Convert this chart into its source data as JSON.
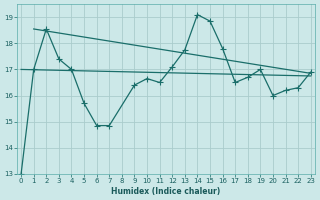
{
  "xlabel": "Humidex (Indice chaleur)",
  "bg_color": "#cce8e8",
  "grid_color": "#aacccc",
  "line_color": "#1a6e6a",
  "xlim": [
    0,
    23
  ],
  "ylim": [
    13,
    19.5
  ],
  "yticks": [
    13,
    14,
    15,
    16,
    17,
    18,
    19
  ],
  "xticks": [
    0,
    1,
    2,
    3,
    4,
    5,
    6,
    7,
    8,
    9,
    10,
    11,
    12,
    13,
    14,
    15,
    16,
    17,
    18,
    19,
    20,
    21,
    22,
    23
  ],
  "main_x": [
    0,
    1,
    2,
    3,
    4,
    5,
    6,
    7,
    9,
    10,
    11,
    12,
    13,
    14,
    15,
    16,
    17,
    18,
    19,
    20,
    21,
    22,
    23
  ],
  "main_y": [
    13.0,
    17.0,
    18.55,
    17.4,
    17.0,
    15.7,
    14.85,
    14.85,
    16.4,
    16.65,
    16.5,
    17.1,
    17.75,
    19.1,
    18.85,
    17.8,
    16.5,
    16.7,
    17.0,
    16.0,
    16.2,
    16.3,
    16.9
  ],
  "upper_line_x": [
    1,
    23
  ],
  "upper_line_y": [
    18.55,
    16.85
  ],
  "lower_line_x": [
    0,
    23
  ],
  "lower_line_y": [
    17.0,
    16.75
  ]
}
